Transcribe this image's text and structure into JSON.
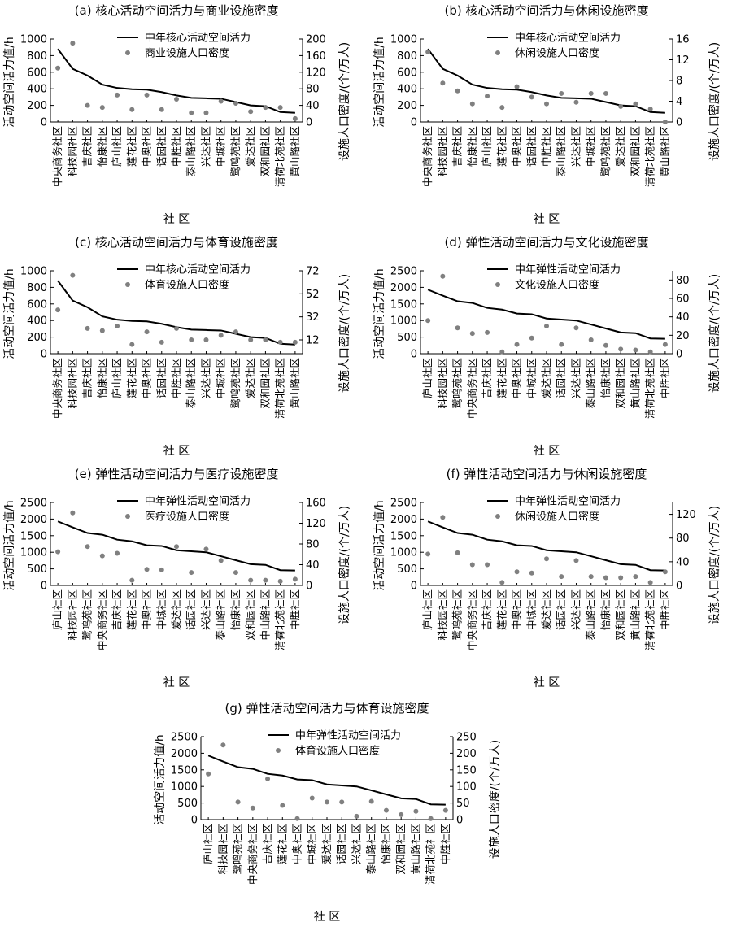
{
  "colors": {
    "line": "#000000",
    "dot": "#808080"
  },
  "chart_data": [
    {
      "type": "line",
      "title": "(a) 核心活动空间活力与商业设施密度",
      "xlabel": "社 区",
      "ylabel": "活动空间活力值/h",
      "y2label": "设施人口密度/(个/万人)",
      "categories": [
        "中央商务社区",
        "科技园社区",
        "吉庆社区",
        "怡康社区",
        "庐山社区",
        "莲花社区",
        "中奥社区",
        "话园社区",
        "中胜社区",
        "泰山路社区",
        "兴达社区",
        "中城社区",
        "鹭鸣苑社区",
        "爱达社区",
        "双和园社区",
        "清荷北苑社区",
        "黄山路社区"
      ],
      "ylim": [
        0,
        1000
      ],
      "yticks": [
        0,
        200,
        400,
        600,
        800,
        1000
      ],
      "y2lim": [
        0,
        200
      ],
      "y2ticks": [
        0,
        40,
        80,
        120,
        160,
        200
      ],
      "series": [
        {
          "name": "中年核心活动空间活力",
          "kind": "line",
          "axis": "left",
          "values": [
            880,
            640,
            560,
            450,
            410,
            395,
            390,
            360,
            320,
            290,
            285,
            280,
            240,
            200,
            190,
            120,
            110
          ]
        },
        {
          "name": "商业设施人口密度",
          "kind": "scatter",
          "axis": "right",
          "values": [
            130,
            190,
            40,
            35,
            65,
            30,
            65,
            30,
            55,
            22,
            22,
            50,
            45,
            25,
            35,
            35,
            8
          ]
        }
      ]
    },
    {
      "type": "line",
      "title": "(b) 核心活动空间活力与休闲设施密度",
      "xlabel": "社 区",
      "ylabel": "活动空间活力值/h",
      "y2label": "设施人口密度/(个/万人)",
      "categories": [
        "中央商务社区",
        "科技园社区",
        "吉庆社区",
        "怡康社区",
        "庐山社区",
        "莲花社区",
        "中奥社区",
        "话园社区",
        "中胜社区",
        "泰山路社区",
        "兴达社区",
        "中城社区",
        "鹭鸣苑社区",
        "爱达社区",
        "双和园社区",
        "清荷北苑社区",
        "黄山路社区"
      ],
      "ylim": [
        0,
        1000
      ],
      "yticks": [
        0,
        200,
        400,
        600,
        800,
        1000
      ],
      "y2lim": [
        0,
        16
      ],
      "y2ticks": [
        0,
        4,
        8,
        12,
        16
      ],
      "series": [
        {
          "name": "中年核心活动空间活力",
          "kind": "line",
          "axis": "left",
          "values": [
            880,
            640,
            560,
            450,
            410,
            395,
            390,
            360,
            320,
            290,
            285,
            280,
            240,
            200,
            190,
            120,
            110
          ]
        },
        {
          "name": "休闲设施人口密度",
          "kind": "scatter",
          "axis": "right",
          "values": [
            13.5,
            7.5,
            6,
            3.5,
            5,
            2.8,
            6.8,
            4.8,
            3.5,
            5.5,
            3.8,
            5.5,
            5.5,
            3,
            3.5,
            2.5,
            0
          ]
        }
      ]
    },
    {
      "type": "line",
      "title": "(c) 核心活动空间活力与体育设施密度",
      "xlabel": "社 区",
      "ylabel": "活动空间活力值/h",
      "y2label": "设施人口密度/(个/万人)",
      "categories": [
        "中央商务社区",
        "科技园社区",
        "吉庆社区",
        "怡康社区",
        "庐山社区",
        "莲花社区",
        "中奥社区",
        "话园社区",
        "中胜社区",
        "泰山路社区",
        "兴达社区",
        "中城社区",
        "鹭鸣苑社区",
        "爱达社区",
        "双和园社区",
        "清荷北苑社区",
        "黄山路社区"
      ],
      "ylim": [
        0,
        1000
      ],
      "yticks": [
        0,
        200,
        400,
        600,
        800,
        1000
      ],
      "y2lim": [
        0,
        72
      ],
      "y2ticks": [
        12,
        32,
        52,
        72
      ],
      "series": [
        {
          "name": "中年核心活动空间活力",
          "kind": "line",
          "axis": "left",
          "values": [
            880,
            640,
            560,
            450,
            410,
            395,
            390,
            360,
            320,
            290,
            285,
            280,
            240,
            200,
            190,
            120,
            110
          ]
        },
        {
          "name": "体育设施人口密度",
          "kind": "scatter",
          "axis": "right",
          "values": [
            38,
            68,
            22,
            20,
            24,
            8,
            19,
            10,
            22,
            12,
            12,
            16,
            19,
            12,
            12,
            10,
            10
          ]
        }
      ]
    },
    {
      "type": "line",
      "title": "(d) 弹性活动空间活力与文化设施密度",
      "xlabel": "社 区",
      "ylabel": "活动空间活力值/h",
      "y2label": "设施人口密度/(个/万人)",
      "categories": [
        "庐山社区",
        "科技园社区",
        "鹭鸣苑社区",
        "中央商务社区",
        "吉庆社区",
        "莲花社区",
        "中奥社区",
        "中城社区",
        "爱达社区",
        "话园社区",
        "兴达社区",
        "泰山路社区",
        "怡康社区",
        "双和园社区",
        "黄山路社区",
        "清荷北苑社区",
        "中胜社区"
      ],
      "ylim": [
        0,
        2500
      ],
      "yticks": [
        0,
        500,
        1000,
        1500,
        2000,
        2500
      ],
      "y2lim": [
        0,
        90
      ],
      "y2ticks": [
        0,
        20,
        40,
        60,
        80
      ],
      "series": [
        {
          "name": "中年弹性活动空间活力",
          "kind": "line",
          "axis": "left",
          "values": [
            1930,
            1750,
            1580,
            1530,
            1380,
            1330,
            1210,
            1190,
            1060,
            1030,
            1000,
            880,
            760,
            640,
            620,
            460,
            450
          ]
        },
        {
          "name": "文化设施人口密度",
          "kind": "scatter",
          "axis": "right",
          "values": [
            36,
            84,
            28,
            22,
            23,
            2,
            10,
            17,
            30,
            10,
            28,
            15,
            9,
            5,
            4,
            2,
            10
          ]
        }
      ]
    },
    {
      "type": "line",
      "title": "(e) 弹性活动空间活力与医疗设施密度",
      "xlabel": "社 区",
      "ylabel": "活动空间活力值/h",
      "y2label": "设施人口密度/(个/万人)",
      "categories": [
        "庐山社区",
        "科技园社区",
        "鹭鸣苑社区",
        "中央商务社区",
        "吉庆社区",
        "莲花社区",
        "中奥社区",
        "中城社区",
        "爱达社区",
        "话园社区",
        "兴达社区",
        "泰山路社区",
        "怡康社区",
        "双和园社区",
        "中山路社区",
        "清荷北苑社区",
        "中胜社区"
      ],
      "ylim": [
        0,
        2500
      ],
      "yticks": [
        0,
        500,
        1000,
        1500,
        2000,
        2500
      ],
      "y2lim": [
        0,
        160
      ],
      "y2ticks": [
        0,
        40,
        80,
        120,
        160
      ],
      "series": [
        {
          "name": "中年弹性活动空间活力",
          "kind": "line",
          "axis": "left",
          "values": [
            1930,
            1750,
            1580,
            1530,
            1380,
            1330,
            1210,
            1190,
            1060,
            1030,
            1000,
            880,
            760,
            640,
            620,
            460,
            450
          ]
        },
        {
          "name": "医疗设施人口密度",
          "kind": "scatter",
          "axis": "right",
          "values": [
            65,
            140,
            75,
            57,
            62,
            10,
            31,
            30,
            75,
            25,
            70,
            48,
            25,
            10,
            10,
            8,
            12
          ]
        }
      ]
    },
    {
      "type": "line",
      "title": "(f) 弹性活动空间活力与休闲设施密度",
      "xlabel": "社 区",
      "ylabel": "活动空间活力值/h",
      "y2label": "设施人口密度/(个/万人)",
      "categories": [
        "庐山社区",
        "科技园社区",
        "鹭鸣苑社区",
        "中央商务社区",
        "吉庆社区",
        "莲花社区",
        "中奥社区",
        "中城社区",
        "爱达社区",
        "话园社区",
        "兴达社区",
        "泰山路社区",
        "怡康社区",
        "双和园社区",
        "黄山路社区",
        "清荷北苑社区",
        "中胜社区"
      ],
      "ylim": [
        0,
        2500
      ],
      "yticks": [
        0,
        500,
        1000,
        1500,
        2000,
        2500
      ],
      "y2lim": [
        0,
        140
      ],
      "y2ticks": [
        0,
        40,
        80,
        120
      ],
      "series": [
        {
          "name": "中年弹性活动空间活力",
          "kind": "line",
          "axis": "left",
          "values": [
            1930,
            1750,
            1580,
            1530,
            1380,
            1330,
            1210,
            1190,
            1060,
            1030,
            1000,
            880,
            760,
            640,
            620,
            460,
            450
          ]
        },
        {
          "name": "休闲设施人口密度",
          "kind": "scatter",
          "axis": "right",
          "values": [
            53,
            115,
            55,
            35,
            35,
            5,
            23,
            21,
            45,
            15,
            42,
            15,
            13,
            13,
            15,
            5,
            23
          ]
        }
      ]
    },
    {
      "type": "line",
      "title": "(g) 弹性活动空间活力与体育设施密度",
      "xlabel": "社 区",
      "ylabel": "活动空间活力值/h",
      "y2label": "设施人口密度/(个/万人)",
      "categories": [
        "庐山社区",
        "科技园社区",
        "鹭鸣苑社区",
        "中央商务社区",
        "吉庆社区",
        "莲花社区",
        "中奥社区",
        "中城社区",
        "爱达社区",
        "话园社区",
        "兴达社区",
        "泰山路社区",
        "怡康社区",
        "双和园社区",
        "黄山路社区",
        "清荷北苑社区",
        "中胜社区"
      ],
      "ylim": [
        0,
        2500
      ],
      "yticks": [
        0,
        500,
        1000,
        1500,
        2000,
        2500
      ],
      "y2lim": [
        0,
        250
      ],
      "y2ticks": [
        0,
        50,
        100,
        150,
        200,
        250
      ],
      "series": [
        {
          "name": "中年弹性活动空间活力",
          "kind": "line",
          "axis": "left",
          "values": [
            1930,
            1750,
            1580,
            1530,
            1380,
            1330,
            1210,
            1190,
            1060,
            1030,
            1000,
            880,
            760,
            640,
            620,
            460,
            450
          ]
        },
        {
          "name": "体育设施人口密度",
          "kind": "scatter",
          "axis": "right",
          "values": [
            138,
            225,
            53,
            35,
            123,
            43,
            3,
            65,
            53,
            53,
            10,
            55,
            28,
            15,
            25,
            3,
            28
          ]
        }
      ]
    }
  ]
}
